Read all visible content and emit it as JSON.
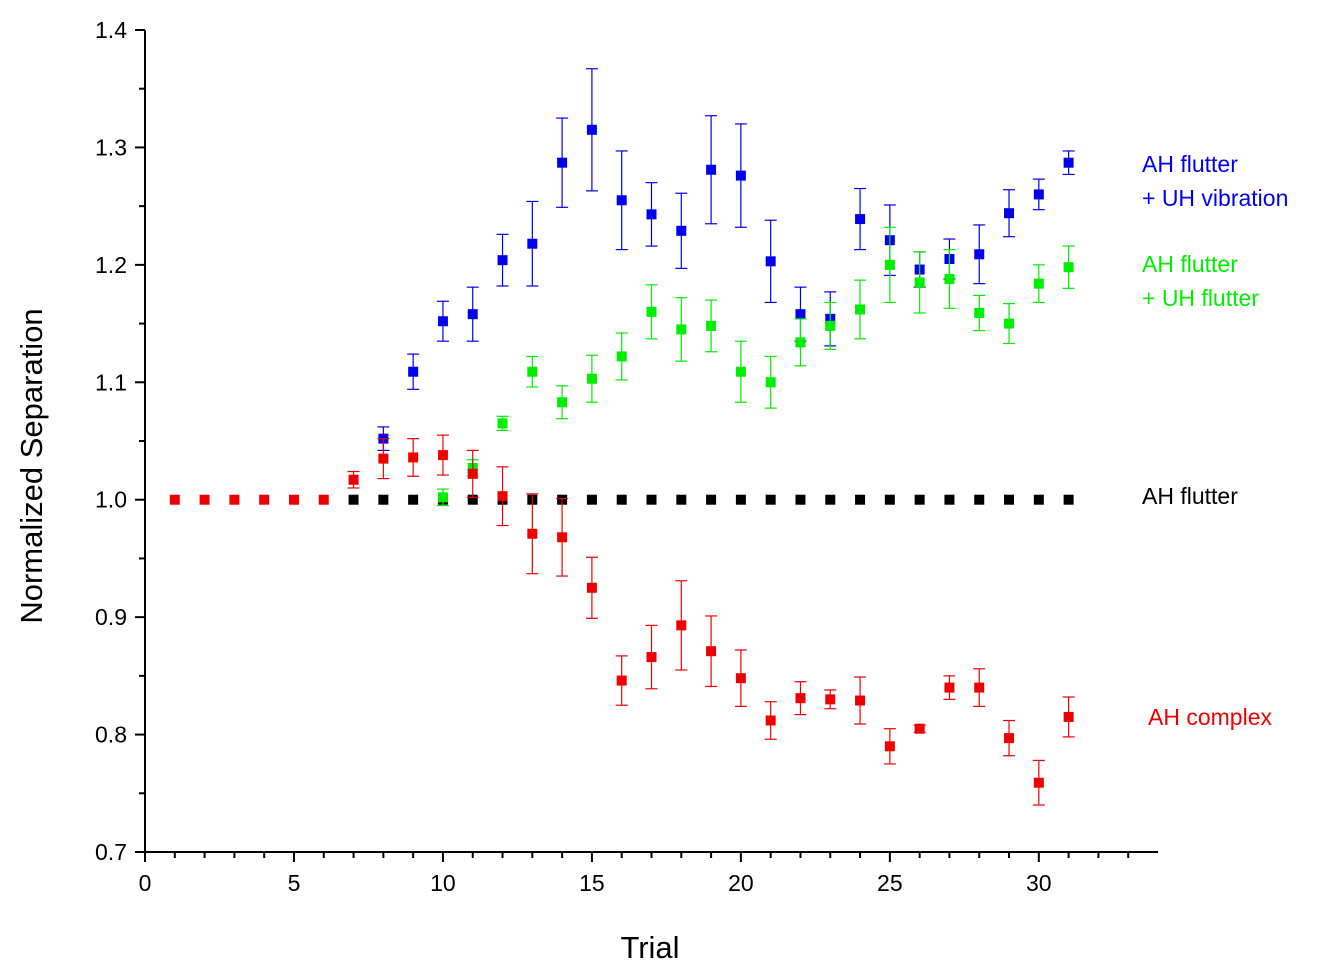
{
  "chart_data": {
    "type": "scatter",
    "title": "",
    "xlabel": "Trial",
    "ylabel": "Normalized Separation",
    "xlim": [
      0,
      34
    ],
    "ylim": [
      0.7,
      1.4
    ],
    "xticks": [
      "0",
      "5",
      "10",
      "15",
      "20",
      "25",
      "30"
    ],
    "yticks": [
      "0.7",
      "0.8",
      "0.9",
      "1.0",
      "1.1",
      "1.2",
      "1.3",
      "1.4"
    ],
    "grid": false,
    "legend_placement": "right",
    "series": [
      {
        "name": "AH flutter",
        "color": "#000000",
        "x": [
          7,
          8,
          9,
          10,
          11,
          12,
          13,
          14,
          15,
          16,
          17,
          18,
          19,
          20,
          21,
          22,
          23,
          24,
          25,
          26,
          27,
          28,
          29,
          30,
          31
        ],
        "y": [
          1.0,
          1.0,
          1.0,
          1.0,
          1.0,
          1.0,
          1.0,
          1.0,
          1.0,
          1.0,
          1.0,
          1.0,
          1.0,
          1.0,
          1.0,
          1.0,
          1.0,
          1.0,
          1.0,
          1.0,
          1.0,
          1.0,
          1.0,
          1.0,
          1.0
        ],
        "err": [
          0,
          0,
          0,
          0,
          0,
          0,
          0,
          0,
          0,
          0,
          0,
          0,
          0,
          0,
          0,
          0,
          0,
          0,
          0,
          0,
          0,
          0,
          0,
          0,
          0
        ]
      },
      {
        "name": "AH flutter\n+ UH vibration",
        "color": "#0000ee",
        "x": [
          8,
          9,
          10,
          11,
          12,
          13,
          14,
          15,
          16,
          17,
          18,
          19,
          20,
          21,
          22,
          23,
          24,
          25,
          26,
          27,
          28,
          29,
          30,
          31
        ],
        "y": [
          1.052,
          1.109,
          1.152,
          1.158,
          1.204,
          1.218,
          1.287,
          1.315,
          1.255,
          1.243,
          1.229,
          1.281,
          1.276,
          1.203,
          1.158,
          1.154,
          1.239,
          1.221,
          1.196,
          1.205,
          1.209,
          1.244,
          1.26,
          1.287
        ],
        "err": [
          0.01,
          0.015,
          0.017,
          0.023,
          0.022,
          0.036,
          0.038,
          0.052,
          0.042,
          0.027,
          0.032,
          0.046,
          0.044,
          0.035,
          0.023,
          0.023,
          0.026,
          0.03,
          0.015,
          0.017,
          0.025,
          0.02,
          0.013,
          0.01
        ]
      },
      {
        "name": "AH flutter\n+ UH flutter",
        "color": "#00ee00",
        "x": [
          10,
          11,
          12,
          13,
          14,
          15,
          16,
          17,
          18,
          19,
          20,
          21,
          22,
          23,
          24,
          25,
          26,
          27,
          28,
          29,
          30,
          31
        ],
        "y": [
          1.002,
          1.027,
          1.065,
          1.109,
          1.083,
          1.103,
          1.122,
          1.16,
          1.145,
          1.148,
          1.109,
          1.1,
          1.134,
          1.148,
          1.162,
          1.2,
          1.185,
          1.188,
          1.159,
          1.15,
          1.184,
          1.198
        ],
        "err": [
          0.007,
          0.007,
          0.006,
          0.013,
          0.014,
          0.02,
          0.02,
          0.023,
          0.027,
          0.022,
          0.026,
          0.022,
          0.02,
          0.02,
          0.025,
          0.032,
          0.026,
          0.025,
          0.015,
          0.017,
          0.016,
          0.018
        ]
      },
      {
        "name": "AH complex",
        "color": "#ee0000",
        "x": [
          1,
          2,
          3,
          4,
          5,
          6,
          7,
          8,
          9,
          10,
          11,
          12,
          13,
          14,
          15,
          16,
          17,
          18,
          19,
          20,
          21,
          22,
          23,
          24,
          25,
          26,
          27,
          28,
          29,
          30,
          31
        ],
        "y": [
          1.0,
          1.0,
          1.0,
          1.0,
          1.0,
          1.0,
          1.017,
          1.035,
          1.036,
          1.038,
          1.022,
          1.003,
          0.971,
          0.968,
          0.925,
          0.846,
          0.866,
          0.893,
          0.871,
          0.848,
          0.812,
          0.831,
          0.83,
          0.829,
          0.79,
          0.805,
          0.84,
          0.84,
          0.797,
          0.759,
          0.815
        ],
        "err": [
          0,
          0,
          0,
          0,
          0,
          0,
          0.007,
          0.017,
          0.016,
          0.017,
          0.02,
          0.025,
          0.034,
          0.033,
          0.026,
          0.021,
          0.027,
          0.038,
          0.03,
          0.024,
          0.016,
          0.014,
          0.008,
          0.02,
          0.015,
          0.003,
          0.01,
          0.016,
          0.015,
          0.019,
          0.017
        ]
      }
    ]
  },
  "legend": {
    "uh_vibration_line1": "AH flutter",
    "uh_vibration_line2": "+ UH vibration",
    "uh_flutter_line1": "AH flutter",
    "uh_flutter_line2": "+ UH flutter",
    "ah_flutter": "AH flutter",
    "ah_complex": "AH complex"
  },
  "colors": {
    "blue": "#0000ee",
    "green": "#00ee00",
    "red": "#ee0000",
    "black": "#000000"
  }
}
